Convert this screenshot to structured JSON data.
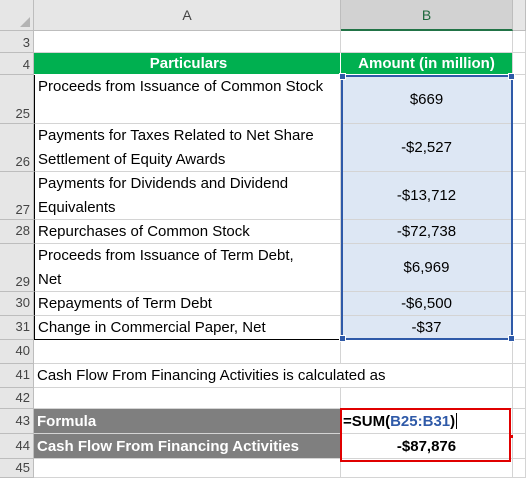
{
  "columns": {
    "a": "A",
    "b": "B"
  },
  "rows": [
    {
      "num": "3",
      "a": "",
      "b": ""
    },
    {
      "num": "4",
      "a": "Particulars",
      "b": "Amount (in million)"
    },
    {
      "num": "25",
      "a": "Proceeds from Issuance of Common Stock",
      "b": "$669"
    },
    {
      "num": "26",
      "a": "Payments for Taxes Related to Net Share Settlement of Equity Awards",
      "b": "-$2,527"
    },
    {
      "num": "27",
      "a": "Payments for Dividends and Dividend Equivalents",
      "b": "-$13,712"
    },
    {
      "num": "28",
      "a": "Repurchases of Common Stock",
      "b": "-$72,738"
    },
    {
      "num": "29",
      "a": "Proceeds from Issuance of Term Debt, Net",
      "b": "$6,969"
    },
    {
      "num": "30",
      "a": "Repayments of Term Debt",
      "b": "-$6,500"
    },
    {
      "num": "31",
      "a": "Change in Commercial Paper, Net",
      "b": "-$37"
    },
    {
      "num": "40",
      "a": "",
      "b": ""
    },
    {
      "num": "41",
      "a": "Cash Flow From Financing Activities is calculated as",
      "b": ""
    },
    {
      "num": "42",
      "a": "",
      "b": ""
    },
    {
      "num": "43",
      "a": "Formula",
      "b": ""
    },
    {
      "num": "44",
      "a": "Cash Flow From Financing Activities",
      "b": "-$87,876"
    },
    {
      "num": "45",
      "a": "",
      "b": ""
    }
  ],
  "formula": {
    "prefix": "=SUM(",
    "ref": "B25:B31",
    "suffix": ")"
  },
  "colors": {
    "header_green": "#00b050",
    "selection_blue": "#2f5aa8",
    "highlight_red": "#e00000",
    "grey_label": "#7f7f7f"
  }
}
